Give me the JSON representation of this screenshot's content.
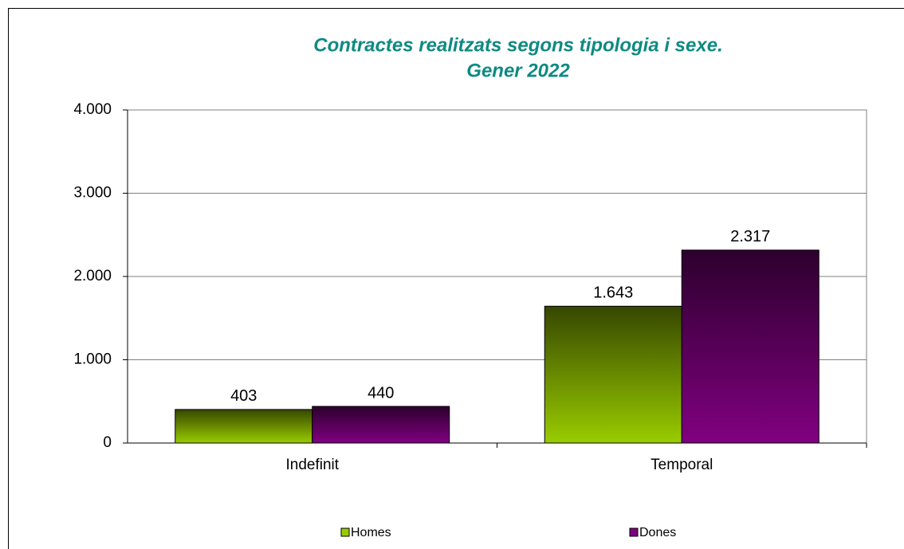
{
  "chart_data": {
    "type": "bar",
    "title": [
      "Contractes realitzats segons tipologia i sexe.",
      "Gener 2022"
    ],
    "categories": [
      "Indefinit",
      "Temporal"
    ],
    "series": [
      {
        "name": "Homes",
        "color": "#99cc00",
        "values": [
          403,
          1643
        ],
        "value_labels": [
          "403",
          "1.643"
        ]
      },
      {
        "name": "Dones",
        "color": "#800080",
        "values": [
          440,
          2317
        ],
        "value_labels": [
          "440",
          "2.317"
        ]
      }
    ],
    "ylim": [
      0,
      4000
    ],
    "yticks": [
      0,
      {
        "value": 1000,
        "label": "1.000"
      },
      {
        "value": 2000,
        "label": "2.000"
      },
      {
        "value": 3000,
        "label": "3.000"
      },
      {
        "value": 4000,
        "label": "4.000"
      }
    ],
    "grid": true,
    "legend": "bottom"
  }
}
